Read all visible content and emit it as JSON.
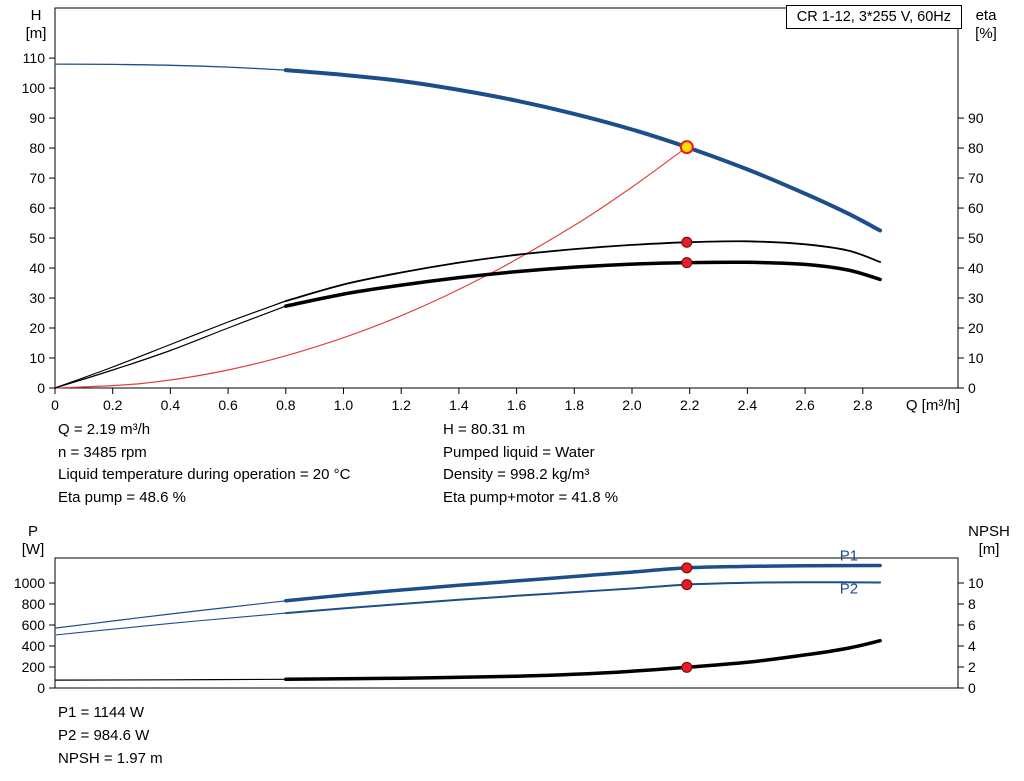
{
  "colors": {
    "curve_blue": "#1c4e8c",
    "curve_red": "#e04040",
    "curve_black": "#000000",
    "marker_red": "#e41e25",
    "marker_red_edge": "#7f0000",
    "marker_yellow": "#ffdf00"
  },
  "stats": {
    "top_left": [
      "Q = 2.19 m³/h",
      "n = 3485 rpm",
      "Liquid temperature during operation = 20 °C",
      "Eta pump = 48.6 %"
    ],
    "top_right": [
      "H = 80.31 m",
      "Pumped liquid = Water",
      "Density = 998.2 kg/m³",
      "Eta pump+motor = 41.8 %"
    ],
    "bottom": [
      "P1 = 1144 W",
      "P2 = 984.6 W",
      "NPSH = 1.97 m"
    ]
  },
  "chart_data": [
    {
      "type": "line",
      "name": "head-and-efficiency-curves",
      "title": "CR 1-12, 3*255 V, 60Hz",
      "grid": false,
      "x": {
        "label": "Q [m³/h]",
        "min": 0,
        "max": 3.13,
        "ticks": [
          0,
          0.2,
          0.4,
          0.6,
          0.8,
          1.0,
          1.2,
          1.4,
          1.6,
          1.8,
          2.0,
          2.2,
          2.4,
          2.6,
          2.8
        ]
      },
      "y_left": {
        "label_lines": [
          "H",
          "[m]"
        ],
        "min": 0,
        "max": 126.7,
        "ticks": [
          0,
          10,
          20,
          30,
          40,
          50,
          60,
          70,
          80,
          90,
          100,
          110
        ]
      },
      "y_right": {
        "label_lines": [
          "eta",
          "[%]"
        ],
        "min": 0,
        "max": 126.7,
        "ticks": [
          0,
          10,
          20,
          30,
          40,
          50,
          60,
          70,
          80,
          90
        ]
      },
      "series": [
        {
          "name": "head-curve-thin",
          "axis": "left",
          "color": "#1c4e8c",
          "width": 1.3,
          "points": [
            [
              0,
              108
            ],
            [
              0.2,
              107.9
            ],
            [
              0.4,
              107.6
            ],
            [
              0.6,
              107.0
            ],
            [
              0.8,
              106.0
            ]
          ]
        },
        {
          "name": "head-curve",
          "axis": "left",
          "color": "#1c4e8c",
          "width": 4,
          "points": [
            [
              0.8,
              106.0
            ],
            [
              1.0,
              104.4
            ],
            [
              1.2,
              102.35
            ],
            [
              1.4,
              99.4
            ],
            [
              1.6,
              95.8
            ],
            [
              1.8,
              91.4
            ],
            [
              2.0,
              86.2
            ],
            [
              2.19,
              80.31
            ],
            [
              2.4,
              72.9
            ],
            [
              2.6,
              64.8
            ],
            [
              2.75,
              58.1
            ],
            [
              2.86,
              52.5
            ]
          ]
        },
        {
          "name": "system-curve",
          "axis": "left",
          "color": "#e04040",
          "width": 1.2,
          "points": [
            [
              0,
              0
            ],
            [
              0.3,
              1.5
            ],
            [
              0.6,
              6.0
            ],
            [
              0.9,
              13.6
            ],
            [
              1.2,
              24.1
            ],
            [
              1.5,
              37.7
            ],
            [
              1.8,
              54.2
            ],
            [
              2.0,
              67.0
            ],
            [
              2.19,
              80.31
            ]
          ]
        },
        {
          "name": "eta-pump-curve-thin",
          "axis": "right",
          "color": "#000000",
          "width": 1.2,
          "points": [
            [
              0,
              0
            ],
            [
              0.2,
              7
            ],
            [
              0.4,
              14.5
            ],
            [
              0.6,
              22
            ],
            [
              0.8,
              29
            ]
          ]
        },
        {
          "name": "eta-pump-curve",
          "axis": "right",
          "color": "#000000",
          "width": 1.8,
          "points": [
            [
              0.8,
              29
            ],
            [
              1.0,
              34.5
            ],
            [
              1.2,
              38.5
            ],
            [
              1.4,
              41.8
            ],
            [
              1.6,
              44.4
            ],
            [
              1.8,
              46.3
            ],
            [
              2.0,
              47.7
            ],
            [
              2.2,
              48.6
            ],
            [
              2.4,
              48.9
            ],
            [
              2.6,
              47.9
            ],
            [
              2.75,
              45.8
            ],
            [
              2.86,
              42.0
            ]
          ]
        },
        {
          "name": "eta-pump-motor-curve-thin",
          "axis": "right",
          "color": "#000000",
          "width": 1.2,
          "points": [
            [
              0,
              0
            ],
            [
              0.2,
              6
            ],
            [
              0.4,
              12.5
            ],
            [
              0.6,
              20
            ],
            [
              0.8,
              27.3
            ]
          ]
        },
        {
          "name": "eta-pump-motor-curve",
          "axis": "right",
          "color": "#000000",
          "width": 3.5,
          "points": [
            [
              0.8,
              27.3
            ],
            [
              1.0,
              31.3
            ],
            [
              1.2,
              34.3
            ],
            [
              1.4,
              36.8
            ],
            [
              1.6,
              38.8
            ],
            [
              1.8,
              40.3
            ],
            [
              2.0,
              41.3
            ],
            [
              2.2,
              41.8
            ],
            [
              2.4,
              41.9
            ],
            [
              2.6,
              41.2
            ],
            [
              2.75,
              39.3
            ],
            [
              2.86,
              36.2
            ]
          ]
        }
      ],
      "markers": [
        {
          "name": "duty-point",
          "axis": "left",
          "q": 2.19,
          "value": 80.31,
          "style": "duty"
        },
        {
          "name": "eta-pump-point",
          "axis": "right",
          "q": 2.19,
          "value": 48.6,
          "style": "red"
        },
        {
          "name": "eta-pump-motor-point",
          "axis": "right",
          "q": 2.19,
          "value": 41.8,
          "style": "red"
        }
      ]
    },
    {
      "type": "line",
      "name": "power-and-npsh-curves",
      "grid": false,
      "x": {
        "min": 0,
        "max": 3.13
      },
      "y_left": {
        "label_lines": [
          "P",
          "[W]"
        ],
        "min": 0,
        "max": 1238,
        "ticks": [
          0,
          200,
          400,
          600,
          800,
          1000
        ]
      },
      "y_right": {
        "label_lines": [
          "NPSH",
          "[m]"
        ],
        "min": 0,
        "max": 12.38,
        "ticks": [
          0,
          2,
          4,
          6,
          8,
          10
        ]
      },
      "series": [
        {
          "name": "p1-curve-thin",
          "axis": "left",
          "color": "#1c4e8c",
          "width": 1.2,
          "points": [
            [
              0,
              570
            ],
            [
              0.2,
              638
            ],
            [
              0.4,
              705
            ],
            [
              0.6,
              768
            ],
            [
              0.8,
              830
            ]
          ]
        },
        {
          "name": "p1-curve",
          "axis": "left",
          "color": "#1c4e8c",
          "width": 3.5,
          "points": [
            [
              0.8,
              830
            ],
            [
              1.0,
              885
            ],
            [
              1.2,
              933
            ],
            [
              1.4,
              978
            ],
            [
              1.6,
              1020
            ],
            [
              1.8,
              1062
            ],
            [
              2.0,
              1104
            ],
            [
              2.19,
              1144
            ],
            [
              2.4,
              1158
            ],
            [
              2.6,
              1164
            ],
            [
              2.86,
              1167
            ]
          ]
        },
        {
          "name": "p2-curve-thin",
          "axis": "left",
          "color": "#1c4e8c",
          "width": 1.1,
          "points": [
            [
              0,
              505
            ],
            [
              0.2,
              560
            ],
            [
              0.4,
              615
            ],
            [
              0.6,
              665
            ],
            [
              0.8,
              713
            ]
          ]
        },
        {
          "name": "p2-curve",
          "axis": "left",
          "color": "#1c4e8c",
          "width": 2,
          "points": [
            [
              0.8,
              713
            ],
            [
              1.0,
              758
            ],
            [
              1.2,
              800
            ],
            [
              1.4,
              840
            ],
            [
              1.6,
              878
            ],
            [
              1.8,
              913
            ],
            [
              2.0,
              948
            ],
            [
              2.19,
              984.6
            ],
            [
              2.4,
              1002
            ],
            [
              2.6,
              1008
            ],
            [
              2.86,
              1005
            ]
          ]
        },
        {
          "name": "npsh-curve-thin",
          "axis": "right",
          "color": "#000000",
          "width": 1.2,
          "points": [
            [
              0,
              0.75
            ],
            [
              0.4,
              0.78
            ],
            [
              0.8,
              0.83
            ]
          ]
        },
        {
          "name": "npsh-curve",
          "axis": "right",
          "color": "#000000",
          "width": 3.5,
          "points": [
            [
              0.8,
              0.83
            ],
            [
              1.2,
              0.93
            ],
            [
              1.6,
              1.12
            ],
            [
              1.8,
              1.3
            ],
            [
              2.0,
              1.6
            ],
            [
              2.19,
              1.97
            ],
            [
              2.4,
              2.45
            ],
            [
              2.6,
              3.15
            ],
            [
              2.75,
              3.8
            ],
            [
              2.86,
              4.5
            ]
          ]
        }
      ],
      "markers": [
        {
          "name": "p1-point",
          "axis": "left",
          "q": 2.19,
          "value": 1144,
          "style": "red"
        },
        {
          "name": "p2-point",
          "axis": "left",
          "q": 2.19,
          "value": 984.6,
          "style": "red"
        },
        {
          "name": "npsh-point",
          "axis": "right",
          "q": 2.19,
          "value": 1.97,
          "style": "red"
        }
      ],
      "annotations": [
        {
          "name": "p1-label",
          "text": "P1",
          "axis": "left",
          "q": 2.72,
          "value": 1215,
          "color": "#1c4e8c"
        },
        {
          "name": "p2-label",
          "text": "P2",
          "axis": "left",
          "q": 2.72,
          "value": 900,
          "color": "#1c4e8c"
        }
      ]
    }
  ]
}
